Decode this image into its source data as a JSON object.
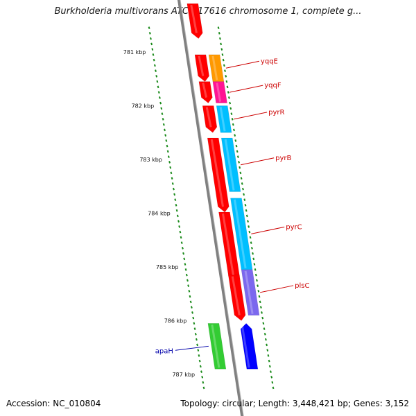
{
  "title": "Burkholderia multivorans ATCC 17616 chromosome 1, complete g...",
  "footer": {
    "accession": "Accession: NC_010804",
    "topology": "Topology: circular; Length: 3,448,421 bp; Genes: 3,152"
  },
  "colors": {
    "backbone": "#808080",
    "tick": "#1a8a1a",
    "forward_label": "#cc0000",
    "reverse_label": "#0000aa"
  },
  "ticks": [
    "781 kbp",
    "782 kbp",
    "783 kbp",
    "784 kbp",
    "785 kbp",
    "786 kbp",
    "787 kbp"
  ],
  "genes": [
    {
      "name": "",
      "start": 780.1,
      "end": 780.75,
      "strand": "+",
      "fill": "#ff0000"
    },
    {
      "name": "",
      "start": 781.05,
      "end": 781.55,
      "strand": "+",
      "fill": "#ff0000"
    },
    {
      "name": "yqqE",
      "start": 781.05,
      "end": 781.55,
      "strand": "+",
      "fill": "#ff9900",
      "labeled": true
    },
    {
      "name": "",
      "start": 781.55,
      "end": 781.95,
      "strand": "+",
      "fill": "#ff0000"
    },
    {
      "name": "yqqF",
      "start": 781.55,
      "end": 781.95,
      "strand": "+",
      "fill": "#ff1493",
      "labeled": true
    },
    {
      "name": "",
      "start": 782.0,
      "end": 782.5,
      "strand": "+",
      "fill": "#ff0000"
    },
    {
      "name": "pyrR",
      "start": 782.0,
      "end": 782.5,
      "strand": "+",
      "fill": "#00bfff",
      "labeled": true
    },
    {
      "name": "",
      "start": 782.6,
      "end": 783.98,
      "strand": "+",
      "fill": "#ff0000"
    },
    {
      "name": "pyrB",
      "start": 782.6,
      "end": 783.6,
      "strand": "+",
      "fill": "#00bfff",
      "labeled": true
    },
    {
      "name": "",
      "start": 783.98,
      "end": 785.28,
      "strand": "+",
      "fill": "#ff0000"
    },
    {
      "name": "pyrC",
      "start": 783.72,
      "end": 785.05,
      "strand": "+",
      "fill": "#00bfff",
      "labeled": true
    },
    {
      "name": "",
      "start": 785.15,
      "end": 786.0,
      "strand": "+",
      "fill": "#ff0000"
    },
    {
      "name": "plsC",
      "start": 785.05,
      "end": 785.9,
      "strand": "+",
      "fill": "#7b68ee",
      "labeled": true
    },
    {
      "name": "apaH",
      "start": 786.05,
      "end": 786.9,
      "strand": "-",
      "fill": "#33cc33",
      "labeled": true
    },
    {
      "name": "",
      "start": 786.05,
      "end": 786.9,
      "strand": "-",
      "fill": "#0000ff"
    }
  ]
}
